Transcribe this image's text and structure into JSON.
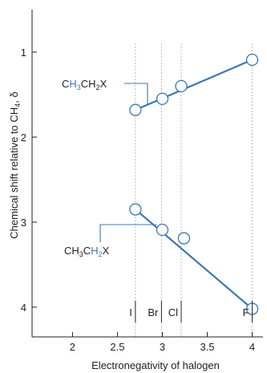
{
  "chart_data": {
    "type": "line",
    "xlabel": "Electronegativity of halogen",
    "ylabel": "Chemical shift relative to CH",
    "ylabel_sub": "4",
    "ylabel_suffix": ", δ",
    "xlim": [
      1.55,
      4.12
    ],
    "ylim": [
      0.5,
      4.35
    ],
    "y_inverted": true,
    "x_ticks": [
      {
        "value": 2,
        "label": "2"
      },
      {
        "value": 2.5,
        "label": "2.5"
      },
      {
        "value": 3,
        "label": "3"
      },
      {
        "value": 3.5,
        "label": "3.5"
      },
      {
        "value": 4,
        "label": "4"
      }
    ],
    "y_ticks": [
      {
        "value": 1,
        "label": "1"
      },
      {
        "value": 2,
        "label": "2"
      },
      {
        "value": 3,
        "label": "3"
      },
      {
        "value": 4,
        "label": "4"
      }
    ],
    "halogen_markers": [
      {
        "x": 2.7,
        "label": "I"
      },
      {
        "x": 2.99,
        "label": "Br"
      },
      {
        "x": 3.21,
        "label": "Cl"
      },
      {
        "x": 4.0,
        "label": "F"
      }
    ],
    "series": [
      {
        "name_parts": [
          {
            "text": "C",
            "highlight": false
          },
          {
            "text": "H",
            "highlight": true
          },
          {
            "text": "3",
            "highlight": true,
            "sub": true
          },
          {
            "text": "CH",
            "highlight": false
          },
          {
            "text": "2",
            "highlight": false,
            "sub": true
          },
          {
            "text": "X",
            "highlight": false
          }
        ],
        "points": [
          {
            "x": 2.7,
            "y": 1.68
          },
          {
            "x": 3.0,
            "y": 1.55
          },
          {
            "x": 3.21,
            "y": 1.4
          },
          {
            "x": 4.0,
            "y": 1.09
          }
        ],
        "fit": [
          {
            "x": 2.7,
            "y": 1.68
          },
          {
            "x": 4.0,
            "y": 1.09
          }
        ]
      },
      {
        "name_parts": [
          {
            "text": "CH",
            "highlight": false
          },
          {
            "text": "3",
            "highlight": false,
            "sub": true
          },
          {
            "text": "C",
            "highlight": false
          },
          {
            "text": "H",
            "highlight": true
          },
          {
            "text": "2",
            "highlight": true,
            "sub": true
          },
          {
            "text": "X",
            "highlight": false
          }
        ],
        "points": [
          {
            "x": 2.7,
            "y": 2.85
          },
          {
            "x": 3.0,
            "y": 3.09
          },
          {
            "x": 3.24,
            "y": 3.19
          },
          {
            "x": 4.0,
            "y": 4.02
          }
        ],
        "fit": [
          {
            "x": 2.7,
            "y": 2.85
          },
          {
            "x": 4.0,
            "y": 4.02
          }
        ]
      }
    ],
    "colors": {
      "line": "#3a78b5",
      "marker_fill": "#ffffff",
      "axis": "#222222",
      "guide": "#999999"
    }
  }
}
